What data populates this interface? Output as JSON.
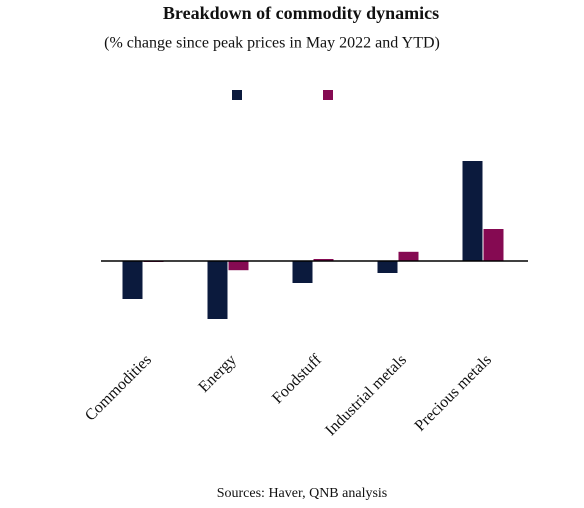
{
  "chart_data": {
    "type": "bar",
    "title": "Breakdown of commodity dynamics",
    "subtitle": "(% change since peak prices in May 2022 and YTD)",
    "source": "Sources: Haver, QNB analysis",
    "categories": [
      "Commodities",
      "Energy",
      "Foodstuff",
      "Industrial metals",
      "Precious metals"
    ],
    "series": [
      {
        "color": "#0b1a3d",
        "values": [
          -9.5,
          -14.5,
          -5.5,
          -3,
          25
        ]
      },
      {
        "color": "#850a52",
        "values": [
          -0.2,
          -2.3,
          0.5,
          2.3,
          8
        ]
      }
    ],
    "ylim": [
      -20,
      40
    ]
  }
}
